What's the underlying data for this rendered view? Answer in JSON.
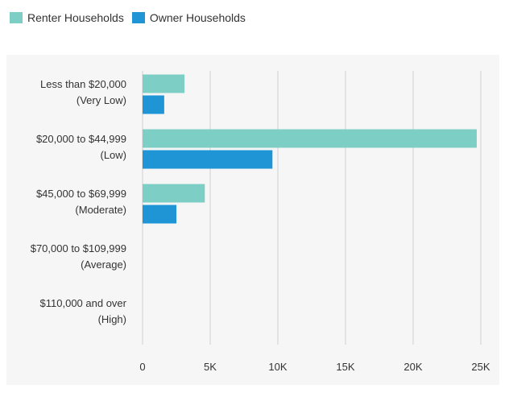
{
  "chart_data": {
    "type": "bar",
    "orientation": "horizontal",
    "categories": [
      [
        "Less than $20,000",
        "(Very Low)"
      ],
      [
        "$20,000 to $44,999",
        "(Low)"
      ],
      [
        "$45,000 to $69,999",
        "(Moderate)"
      ],
      [
        "$70,000 to $109,999",
        "(Average)"
      ],
      [
        "$110,000 and over",
        "(High)"
      ]
    ],
    "series": [
      {
        "name": "Renter Households",
        "color": "#7dcfc6",
        "values": [
          3100,
          24700,
          4600,
          0,
          0
        ]
      },
      {
        "name": "Owner Households",
        "color": "#1f95d5",
        "values": [
          1600,
          9600,
          2500,
          0,
          0
        ]
      }
    ],
    "x_ticks": [
      0,
      5000,
      10000,
      15000,
      20000,
      25000
    ],
    "x_tick_labels": [
      "0",
      "5K",
      "10K",
      "15K",
      "20K",
      "25K"
    ],
    "xlim": [
      0,
      25000
    ],
    "grid": true,
    "legend_position": "top-left",
    "title": "",
    "xlabel": "",
    "ylabel": ""
  }
}
